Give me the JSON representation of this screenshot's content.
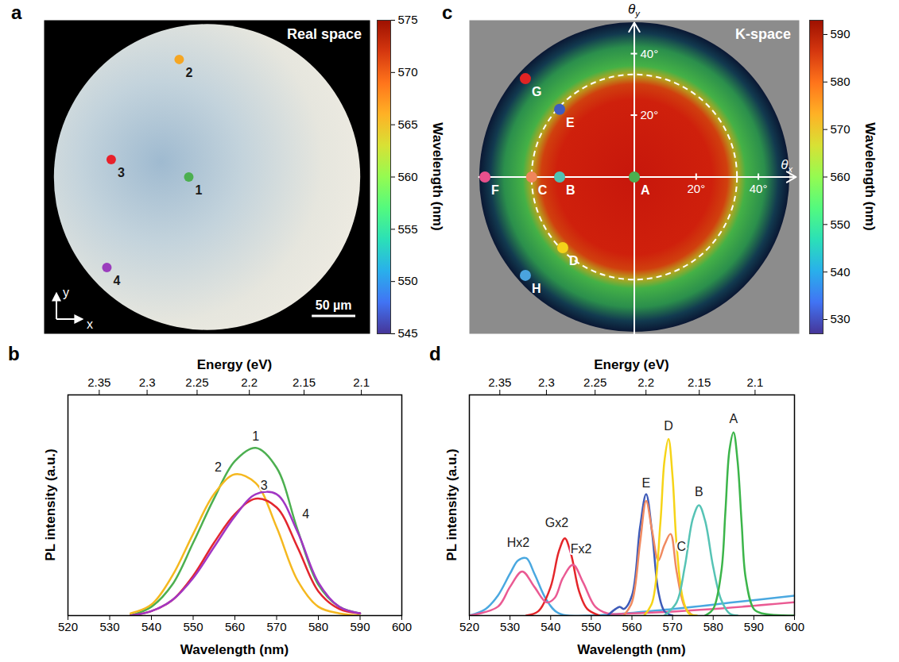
{
  "chart_data": [
    {
      "panel": "a",
      "type": "scatter",
      "title": "Real space",
      "xlim": [
        -187,
        187
      ],
      "ylim": [
        -180,
        180
      ],
      "tick_labels": false,
      "x": [
        -21,
        -32,
        -110,
        -115
      ],
      "values": [
        0,
        135,
        20,
        -104
      ],
      "labels": [
        "1",
        "2",
        "3",
        "4"
      ],
      "colors": [
        "#4caf50",
        "#f5a623",
        "#e8202a",
        "#9b3dbd"
      ],
      "scale_bar": {
        "value": 50,
        "label": "50 µm"
      },
      "axis_arrows": [
        "x",
        "y"
      ],
      "colorbar": {
        "label": "Wavelength (nm)",
        "lim": [
          545,
          575
        ],
        "ticks": [
          545,
          550,
          555,
          560,
          565,
          570,
          575
        ]
      }
    },
    {
      "panel": "b",
      "type": "line",
      "xlabel": "Wavelength (nm)",
      "ylabel": "PL intensity (a.u.)",
      "x2label": "Energy (eV)",
      "xlim": [
        520,
        600
      ],
      "xticks": [
        520,
        530,
        540,
        550,
        560,
        570,
        580,
        590,
        600
      ],
      "x2ticks": [
        {
          "value": 527.59,
          "label": "2.35"
        },
        {
          "value": 539.06,
          "label": "2.3"
        },
        {
          "value": 551.04,
          "label": "2.25"
        },
        {
          "value": 563.56,
          "label": "2.2"
        },
        {
          "value": 576.67,
          "label": "2.15"
        },
        {
          "value": 590.4,
          "label": "2.1"
        }
      ],
      "ylim": [
        0,
        1
      ],
      "tick_labels": "x",
      "series": [
        {
          "name": "1",
          "color": "#4caf50",
          "label_at": [
            565,
            0.81
          ],
          "x": [
            535,
            540,
            545,
            550,
            555,
            560,
            565,
            570,
            575,
            580,
            585,
            590
          ],
          "values": [
            0,
            0.04,
            0.14,
            0.33,
            0.53,
            0.7,
            0.76,
            0.67,
            0.39,
            0.14,
            0.04,
            0.01
          ]
        },
        {
          "name": "2",
          "color": "#f5b81f",
          "label_at": [
            556,
            0.67
          ],
          "x": [
            535,
            540,
            545,
            550,
            555,
            560,
            565,
            570,
            575,
            580,
            585,
            590
          ],
          "values": [
            0.01,
            0.05,
            0.18,
            0.37,
            0.55,
            0.64,
            0.6,
            0.4,
            0.16,
            0.04,
            0.01,
            0
          ]
        },
        {
          "name": "3",
          "color": "#e3262e",
          "label_at": [
            567,
            0.59
          ],
          "x": [
            535,
            540,
            545,
            550,
            555,
            560,
            565,
            570,
            575,
            580,
            585,
            590
          ],
          "values": [
            0,
            0.02,
            0.07,
            0.18,
            0.33,
            0.46,
            0.53,
            0.49,
            0.31,
            0.11,
            0.03,
            0.01
          ]
        },
        {
          "name": "4",
          "color": "#a136c4",
          "label_at": [
            577,
            0.46
          ],
          "x": [
            535,
            540,
            545,
            550,
            555,
            560,
            565,
            570,
            575,
            580,
            585,
            590
          ],
          "values": [
            0,
            0.02,
            0.07,
            0.17,
            0.31,
            0.45,
            0.55,
            0.55,
            0.38,
            0.15,
            0.04,
            0.01
          ]
        }
      ]
    },
    {
      "panel": "c",
      "type": "scatter",
      "title": "K-space",
      "xlabel": "θx",
      "ylabel": "θy",
      "xlim": [
        -53,
        53
      ],
      "ylim": [
        -51,
        51
      ],
      "xticks": [
        {
          "value": 20,
          "label": "20°"
        },
        {
          "value": 40,
          "label": "40°"
        }
      ],
      "yticks": [
        {
          "value": 20,
          "label": "20°"
        },
        {
          "value": 40,
          "label": "40°"
        }
      ],
      "ring": 33,
      "x": [
        0,
        -24,
        -33,
        -23,
        -24,
        -48,
        -35,
        -35
      ],
      "values": [
        0,
        0,
        0,
        -23,
        22,
        0,
        32,
        -32
      ],
      "labels": [
        "A",
        "B",
        "C",
        "D",
        "E",
        "F",
        "G",
        "H"
      ],
      "colors": [
        "#4caf50",
        "#4fc1b3",
        "#f0855a",
        "#f4d21a",
        "#3f5cbf",
        "#e8508c",
        "#e02424",
        "#4aa3de"
      ],
      "colorbar": {
        "label": "Wavelength (nm)",
        "lim": [
          527,
          593
        ],
        "ticks": [
          530,
          540,
          550,
          560,
          570,
          580,
          590
        ]
      }
    },
    {
      "panel": "d",
      "type": "line",
      "xlabel": "Wavelength (nm)",
      "ylabel": "PL intensity (a.u.)",
      "x2label": "Energy (eV)",
      "xlim": [
        520,
        600
      ],
      "xticks": [
        520,
        530,
        540,
        550,
        560,
        570,
        580,
        590,
        600
      ],
      "x2ticks": [
        {
          "value": 527.59,
          "label": "2.35"
        },
        {
          "value": 539.06,
          "label": "2.3"
        },
        {
          "value": 551.04,
          "label": "2.25"
        },
        {
          "value": 563.56,
          "label": "2.2"
        },
        {
          "value": 576.67,
          "label": "2.15"
        },
        {
          "value": 590.4,
          "label": "2.1"
        }
      ],
      "ylim": [
        0,
        1
      ],
      "tick_labels": "x",
      "series": [
        {
          "name": "Hx2",
          "color": "#4aa8e0",
          "label_at": [
            532,
            0.33
          ],
          "x": [
            520,
            524,
            527,
            530,
            532,
            534,
            536,
            539,
            542,
            550,
            570,
            585,
            600
          ],
          "values": [
            0,
            0.03,
            0.09,
            0.19,
            0.25,
            0.26,
            0.19,
            0.07,
            0.01,
            0,
            0.03,
            0.06,
            0.09
          ]
        },
        {
          "name": "Gx2",
          "color": "#e4262a",
          "label_at": [
            541.5,
            0.42
          ],
          "x": [
            534,
            537,
            540,
            542,
            543.5,
            545,
            547,
            549,
            552
          ],
          "values": [
            0,
            0.02,
            0.13,
            0.29,
            0.35,
            0.28,
            0.11,
            0.03,
            0
          ]
        },
        {
          "name": "Fx2",
          "color": "#ea5a93",
          "label_at": [
            547.5,
            0.3
          ],
          "x": [
            520,
            527,
            530,
            533,
            536,
            539,
            541,
            543,
            545.5,
            548,
            551,
            554,
            560,
            580,
            600
          ],
          "values": [
            0,
            0.04,
            0.13,
            0.2,
            0.13,
            0.06,
            0.08,
            0.17,
            0.23,
            0.15,
            0.04,
            0.01,
            0.01,
            0.03,
            0.06
          ]
        },
        {
          "name": "E",
          "color": "#3d5ab8",
          "label_at": [
            563.5,
            0.6
          ],
          "x": [
            554,
            556,
            557,
            558,
            560,
            562,
            563.5,
            565,
            566.5,
            568,
            570
          ],
          "values": [
            0,
            0.03,
            0.04,
            0.03,
            0.09,
            0.4,
            0.55,
            0.37,
            0.11,
            0.02,
            0
          ]
        },
        {
          "name": "C",
          "color": "#f08a60",
          "label_at": [
            572.2,
            0.31
          ],
          "x": [
            558,
            560,
            562,
            563.5,
            565,
            566.5,
            568,
            569.5,
            571,
            573,
            575
          ],
          "values": [
            0,
            0.06,
            0.33,
            0.52,
            0.38,
            0.25,
            0.32,
            0.37,
            0.2,
            0.04,
            0
          ]
        },
        {
          "name": "D",
          "color": "#f6d417",
          "label_at": [
            569,
            0.86
          ],
          "x": [
            563,
            565,
            567,
            568,
            569,
            570,
            571,
            572.5,
            574,
            576
          ],
          "values": [
            0,
            0.06,
            0.42,
            0.7,
            0.8,
            0.63,
            0.32,
            0.08,
            0.01,
            0
          ]
        },
        {
          "name": "B",
          "color": "#56c3b5",
          "label_at": [
            576.5,
            0.56
          ],
          "x": [
            568,
            571,
            573,
            575,
            576.5,
            578,
            580,
            582,
            584,
            586
          ],
          "values": [
            0,
            0.06,
            0.22,
            0.44,
            0.5,
            0.43,
            0.22,
            0.07,
            0.01,
            0
          ]
        },
        {
          "name": "A",
          "color": "#3cb54a",
          "label_at": [
            585,
            0.89
          ],
          "x": [
            578,
            580,
            582,
            583,
            584,
            585,
            586,
            587,
            588,
            590,
            592,
            600
          ],
          "values": [
            0,
            0.03,
            0.2,
            0.47,
            0.75,
            0.83,
            0.7,
            0.42,
            0.17,
            0.03,
            0.01,
            0
          ]
        }
      ]
    }
  ]
}
